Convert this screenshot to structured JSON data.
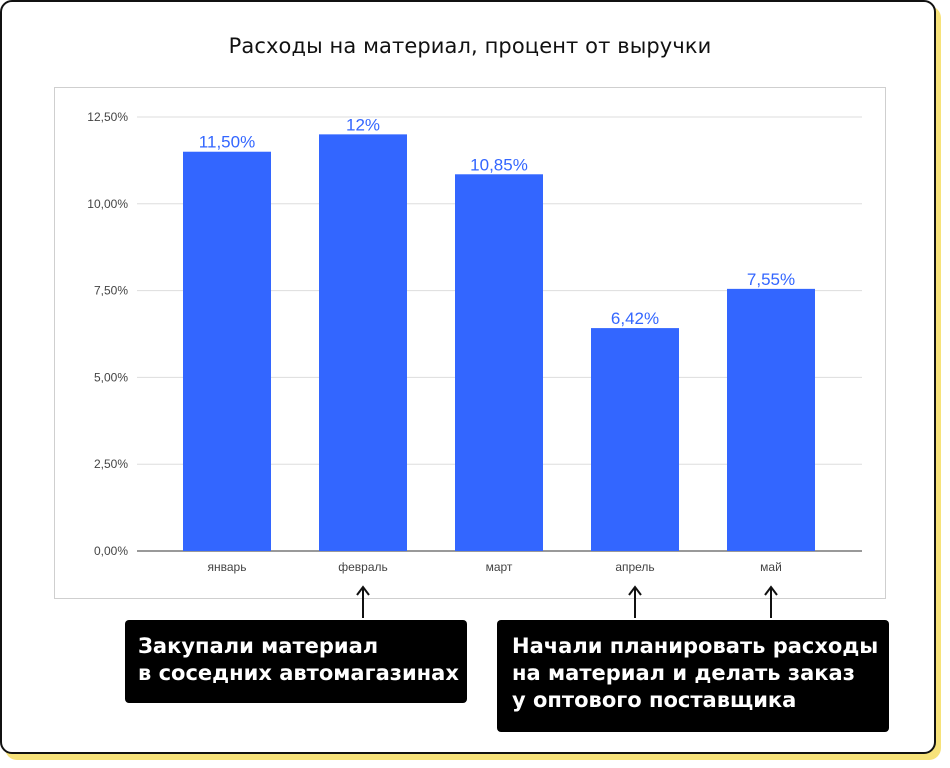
{
  "chart_data": {
    "type": "bar",
    "title": "Расходы на материал, процент от выручки",
    "categories": [
      "январь",
      "февраль",
      "март",
      "апрель",
      "май"
    ],
    "values": [
      11.5,
      12,
      10.85,
      6.42,
      7.55
    ],
    "data_labels": [
      "11,50%",
      "12%",
      "10,85%",
      "6,42%",
      "7,55%"
    ],
    "y_ticks": [
      {
        "value": 0,
        "label": "0,00%"
      },
      {
        "value": 2.5,
        "label": "2,50%"
      },
      {
        "value": 5,
        "label": "5,00%"
      },
      {
        "value": 7.5,
        "label": "7,50%"
      },
      {
        "value": 10,
        "label": "10,00%"
      },
      {
        "value": 12.5,
        "label": "12,50%"
      }
    ],
    "ylim": [
      0,
      12.5
    ],
    "xlabel": "",
    "ylabel": "",
    "grid": true,
    "legend": "none",
    "bar_color": "#3366ff",
    "label_color": "#3366ff"
  },
  "annotations": [
    {
      "target_category": "февраль",
      "lines": [
        "Закупали материал",
        "в соседних автомагазинах"
      ]
    },
    {
      "target_category": "апрель",
      "extra_target_category": "май",
      "lines": [
        "Начали планировать расходы",
        "на материал и делать заказ",
        "у оптового поставщика"
      ]
    }
  ],
  "colors": {
    "frame_border": "#111111",
    "frame_shadow": "#f7e27a",
    "callout_bg": "#000000",
    "callout_text": "#ffffff"
  }
}
